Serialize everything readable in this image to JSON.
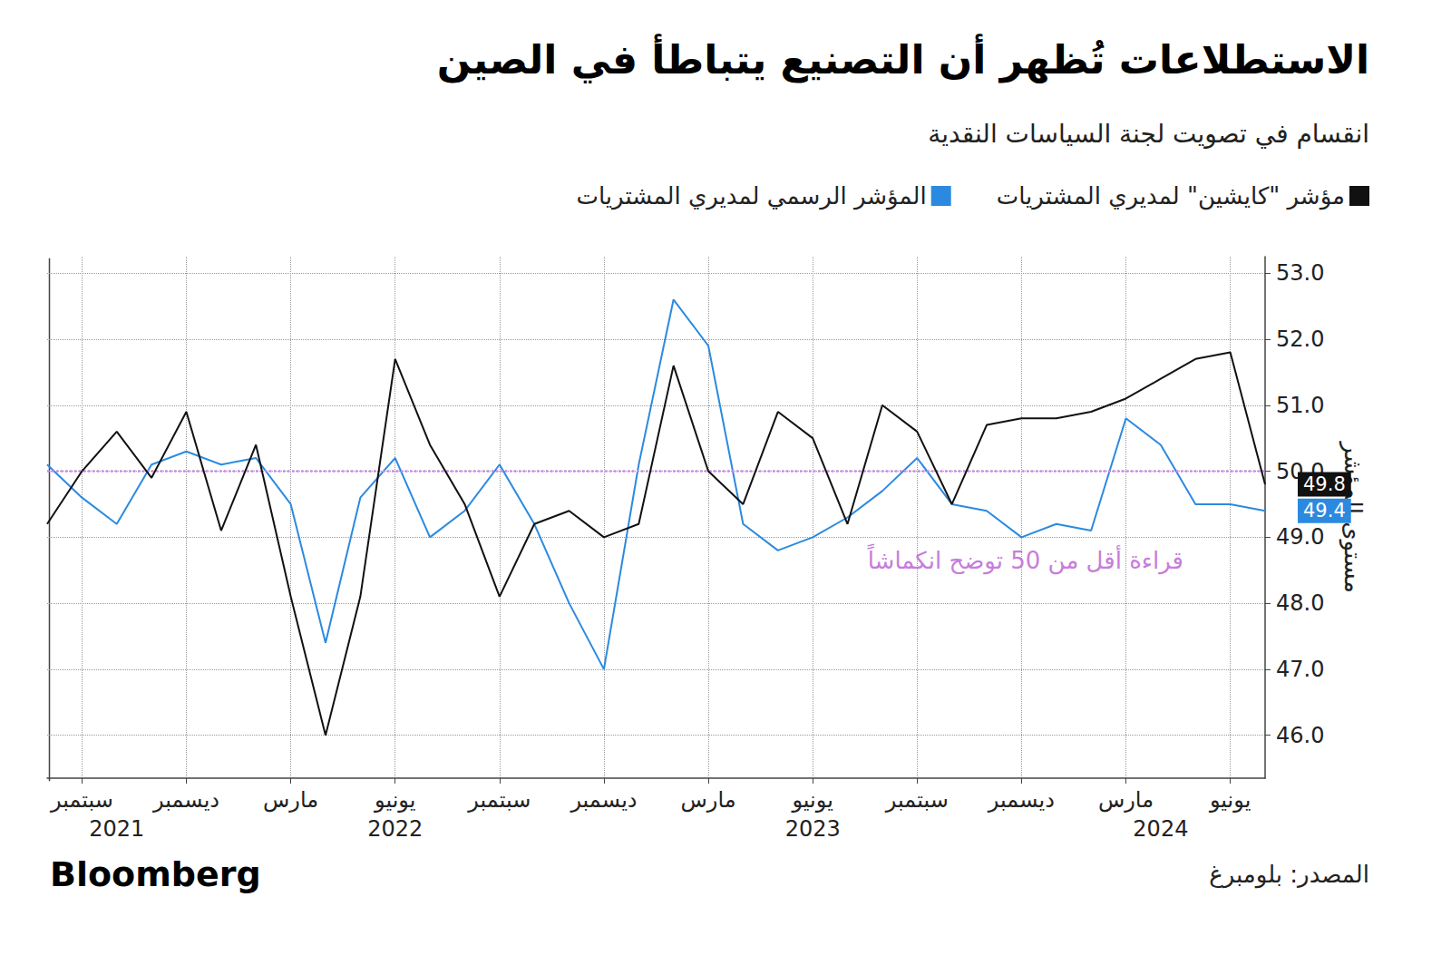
{
  "chart_data": {
    "type": "line",
    "title": "الاستطلاعات تُظهر أن التصنيع يتباطأ في الصين",
    "subtitle": "انقسام في تصويت لجنة السياسات النقدية",
    "y_label": "مستوى المؤشر",
    "annotation": "قراءة أقل من 50 توضح انكماشاً",
    "reference_line": 50,
    "source": "المصدر: بلومبرغ",
    "brand": "Bloomberg",
    "categories": [
      null,
      "سبتمبر",
      null,
      null,
      "ديسمبر",
      null,
      null,
      "مارس",
      null,
      null,
      "يونيو",
      null,
      null,
      "سبتمبر",
      null,
      null,
      "ديسمبر",
      null,
      null,
      "مارس",
      null,
      null,
      "يونيو",
      null,
      null,
      "سبتمبر",
      null,
      null,
      "ديسمبر",
      null,
      null,
      "مارس",
      null,
      null,
      "يونيو",
      null
    ],
    "year_labels": [
      null,
      null,
      "2021",
      null,
      null,
      null,
      null,
      null,
      null,
      null,
      "2022",
      null,
      null,
      null,
      null,
      null,
      null,
      null,
      null,
      null,
      null,
      null,
      "2023",
      null,
      null,
      null,
      null,
      null,
      null,
      null,
      null,
      null,
      "2024",
      null,
      null,
      null
    ],
    "series": [
      {
        "name": "مؤشر \"كايشين\" لمديري المشتريات",
        "color": "#111111",
        "values": [
          49.2,
          50.0,
          50.6,
          49.9,
          50.9,
          49.1,
          50.4,
          48.1,
          46.0,
          48.1,
          51.7,
          50.4,
          49.5,
          48.1,
          49.2,
          49.4,
          49.0,
          49.2,
          51.6,
          50.0,
          49.5,
          50.9,
          50.5,
          49.2,
          51.0,
          50.6,
          49.5,
          50.7,
          50.8,
          50.8,
          50.9,
          51.1,
          51.4,
          51.7,
          51.8,
          49.8
        ]
      },
      {
        "name": "المؤشر الرسمي لمديري المشتريات",
        "color": "#2b8ae0",
        "values": [
          50.1,
          49.6,
          49.2,
          50.1,
          50.3,
          50.1,
          50.2,
          49.5,
          47.4,
          49.6,
          50.2,
          49.0,
          49.4,
          50.1,
          49.2,
          48.0,
          47.0,
          50.1,
          52.6,
          51.9,
          49.2,
          48.8,
          49.0,
          49.3,
          49.7,
          50.2,
          49.5,
          49.4,
          49.0,
          49.2,
          49.1,
          50.8,
          50.4,
          49.5,
          49.5,
          49.4
        ]
      }
    ],
    "ylim": [
      45.35,
      53.25
    ],
    "yticks": [
      {
        "value": 46,
        "label": "46.0"
      },
      {
        "value": 47,
        "label": "47.0"
      },
      {
        "value": 48,
        "label": "48.0"
      },
      {
        "value": 49,
        "label": "49.0"
      },
      {
        "value": 50,
        "label": "50.0"
      },
      {
        "value": 51,
        "label": "51.0"
      },
      {
        "value": 52,
        "label": "52.0"
      },
      {
        "value": 53,
        "label": "53.0"
      }
    ],
    "grid": true,
    "legend": "top-right"
  }
}
